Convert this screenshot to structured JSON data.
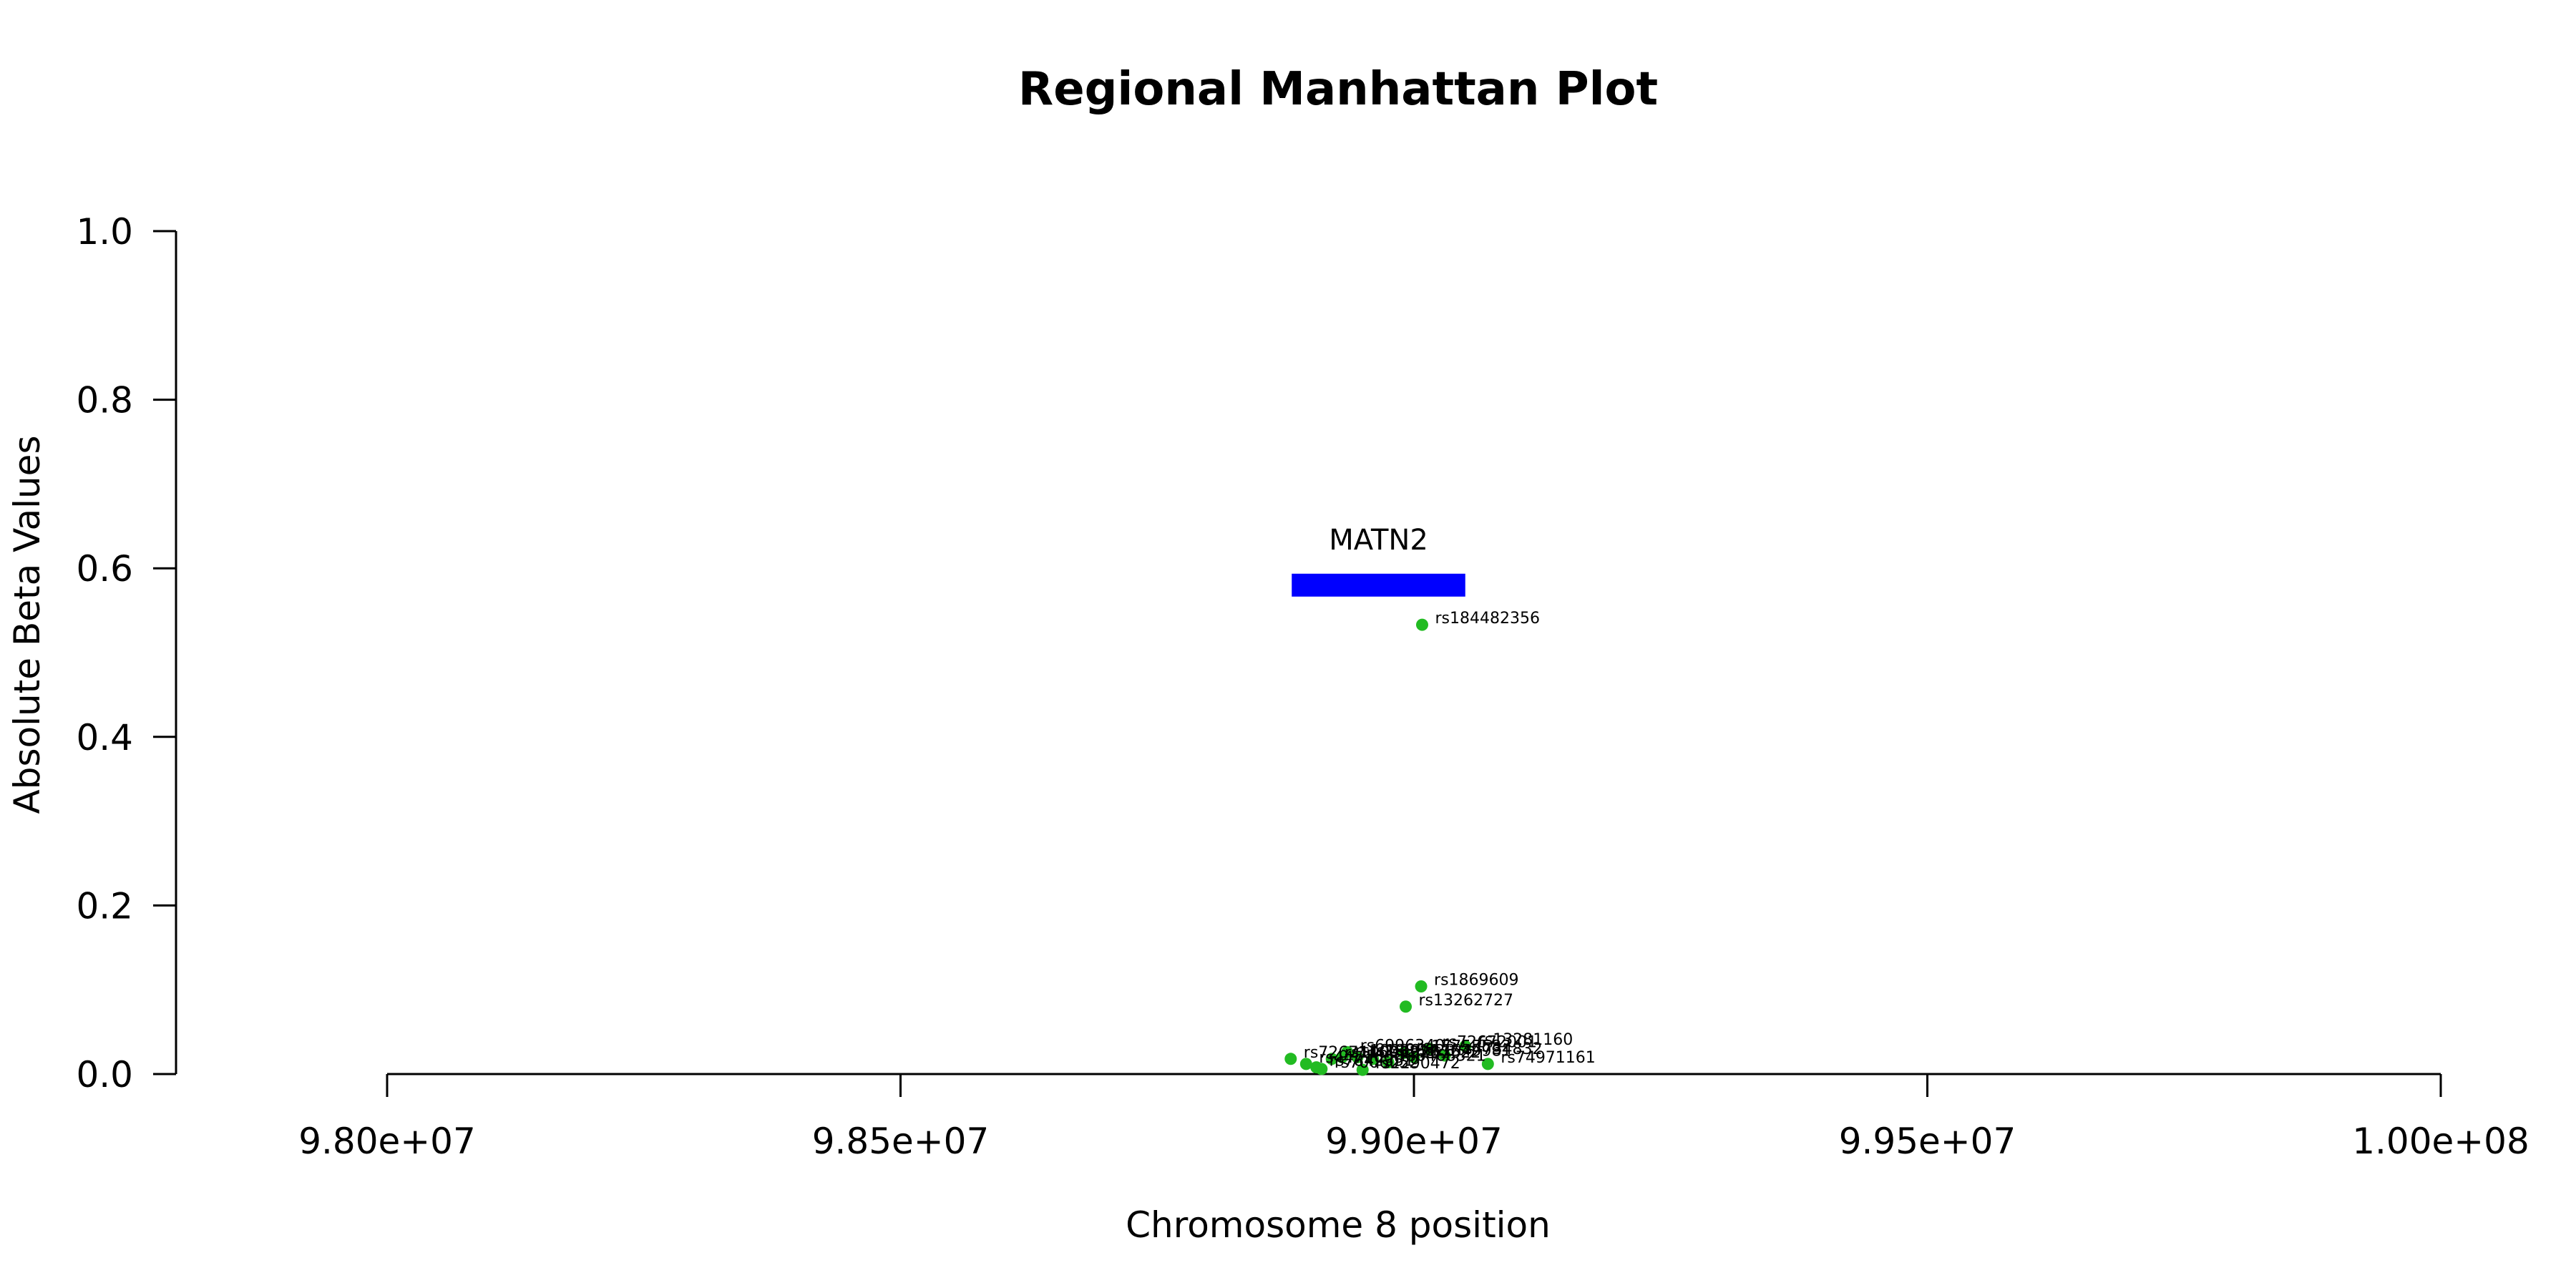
{
  "chart_data": {
    "type": "scatter",
    "title": "Regional Manhattan Plot",
    "xlabel": "Chromosome 8 position",
    "ylabel": "Absolute Beta Values",
    "xlim": [
      98000000,
      100000000
    ],
    "ylim": [
      0,
      1
    ],
    "x_ticks": [
      98000000,
      98500000,
      99000000,
      99500000,
      100000000
    ],
    "x_tick_labels": [
      "9.80e+07",
      "9.85e+07",
      "9.90e+07",
      "9.95e+07",
      "1.00e+08"
    ],
    "y_ticks": [
      0,
      0.2,
      0.4,
      0.6,
      0.8,
      1.0
    ],
    "y_tick_labels": [
      "0.0",
      "0.2",
      "0.4",
      "0.6",
      "0.8",
      "1.0"
    ],
    "point_color": "#22bb22",
    "gene": {
      "name": "MATN2",
      "start": 98881000,
      "end": 99050000,
      "y": 0.58,
      "color": "#0000ff"
    },
    "points": [
      {
        "label": "rs184482356",
        "x": 99008000,
        "y": 0.533
      },
      {
        "label": "rs1869609",
        "x": 99007000,
        "y": 0.104
      },
      {
        "label": "rs13262727",
        "x": 98992000,
        "y": 0.08
      },
      {
        "label": "rs72671160",
        "x": 98880000,
        "y": 0.018
      },
      {
        "label": "rs13281160",
        "x": 99050000,
        "y": 0.033
      },
      {
        "label": "rs74971161",
        "x": 99072000,
        "y": 0.012
      },
      {
        "label": "rs17755582",
        "x": 98990000,
        "y": 0.025
      },
      {
        "label": "rs72672001",
        "x": 99015000,
        "y": 0.03
      },
      {
        "label": "rs6996340",
        "x": 98935000,
        "y": 0.026
      },
      {
        "label": "rs1886828",
        "x": 98945000,
        "y": 0.02
      },
      {
        "label": "rs2290472",
        "x": 98950000,
        "y": 0.005
      },
      {
        "label": "rs6468321",
        "x": 98975000,
        "y": 0.014
      },
      {
        "label": "rs4734832",
        "x": 99030000,
        "y": 0.022
      },
      {
        "label": "rs1038611",
        "x": 98930000,
        "y": 0.02
      },
      {
        "label": "rs4471600",
        "x": 98895000,
        "y": 0.012
      },
      {
        "label": "rs7842351",
        "x": 98905000,
        "y": 0.008
      },
      {
        "label": "rs10096226",
        "x": 98920000,
        "y": 0.018
      },
      {
        "label": "rs13257622",
        "x": 98960000,
        "y": 0.018
      },
      {
        "label": "rs7006052",
        "x": 98910000,
        "y": 0.006
      },
      {
        "label": "rs1549981",
        "x": 99000000,
        "y": 0.02
      }
    ]
  }
}
